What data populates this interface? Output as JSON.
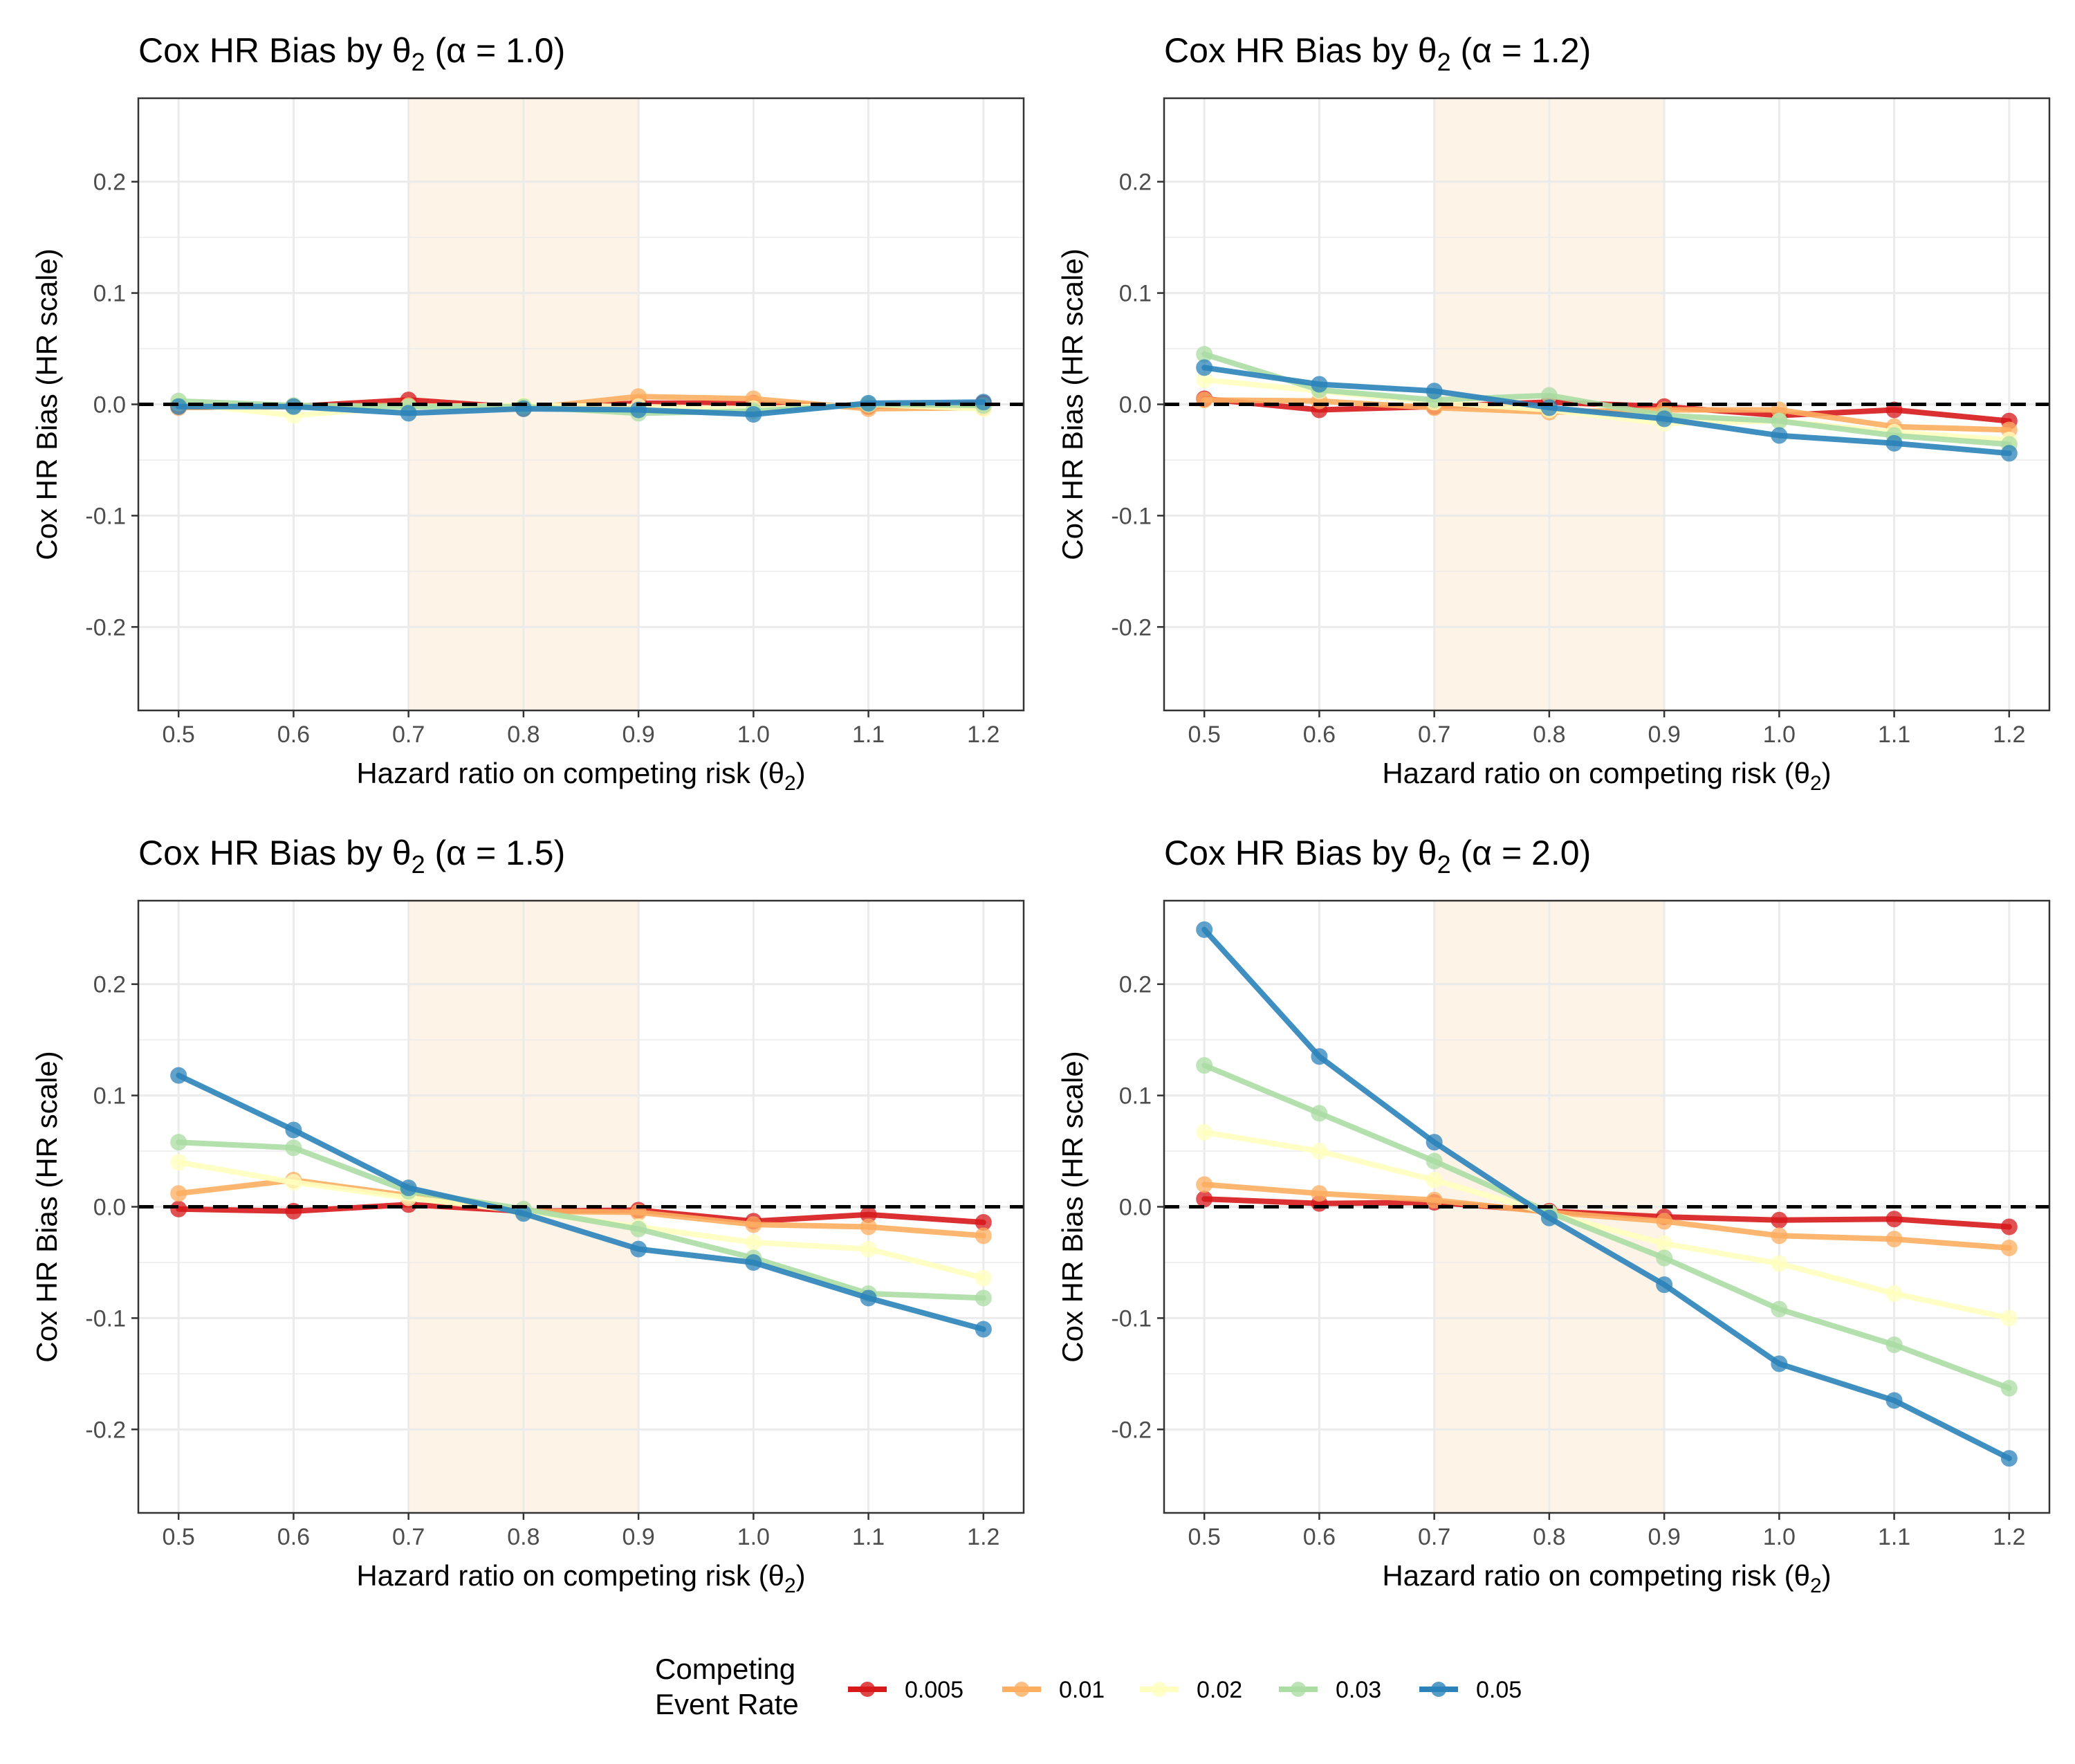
{
  "chart_data": [
    {
      "type": "line",
      "title_prefix": "Cox HR Bias by θ",
      "title_sub": "2",
      "title_suffix": " (α = 1.0)",
      "xlabel_prefix": "Hazard ratio on competing risk (θ",
      "xlabel_sub": "2",
      "xlabel_suffix": ")",
      "ylabel": "Cox HR Bias (HR scale)",
      "x": [
        0.5,
        0.6,
        0.7,
        0.8,
        0.9,
        1.0,
        1.1,
        1.2
      ],
      "xticks": [
        "0.5",
        "0.6",
        "0.7",
        "0.8",
        "0.9",
        "1.0",
        "1.1",
        "1.2"
      ],
      "yticks": [
        -0.2,
        -0.1,
        0.0,
        0.1,
        0.2
      ],
      "ytick_labels": [
        "-0.2",
        "-0.1",
        "0.0",
        "0.1",
        "0.2"
      ],
      "xlim": [
        0.465,
        1.235
      ],
      "ylim": [
        -0.275,
        0.275
      ],
      "shaded_band": [
        0.7,
        0.9
      ],
      "reference_line": 0,
      "series": [
        {
          "name": "0.005",
          "values": [
            -0.002,
            -0.002,
            0.004,
            -0.003,
            0.001,
            0.001,
            -0.002,
            0.001
          ]
        },
        {
          "name": "0.01",
          "values": [
            -0.003,
            -0.002,
            -0.001,
            -0.004,
            0.007,
            0.005,
            -0.004,
            -0.003
          ]
        },
        {
          "name": "0.02",
          "values": [
            0.001,
            -0.01,
            -0.002,
            -0.001,
            -0.002,
            -0.004,
            0.0,
            -0.004
          ]
        },
        {
          "name": "0.03",
          "values": [
            0.003,
            -0.001,
            -0.002,
            -0.002,
            -0.008,
            -0.006,
            0.0,
            -0.001
          ]
        },
        {
          "name": "0.05",
          "values": [
            -0.002,
            -0.002,
            -0.008,
            -0.004,
            -0.005,
            -0.009,
            0.001,
            0.002
          ]
        }
      ]
    },
    {
      "type": "line",
      "title_prefix": "Cox HR Bias by θ",
      "title_sub": "2",
      "title_suffix": " (α = 1.2)",
      "xlabel_prefix": "Hazard ratio on competing risk (θ",
      "xlabel_sub": "2",
      "xlabel_suffix": ")",
      "ylabel": "Cox HR Bias (HR scale)",
      "x": [
        0.5,
        0.6,
        0.7,
        0.8,
        0.9,
        1.0,
        1.1,
        1.2
      ],
      "xticks": [
        "0.5",
        "0.6",
        "0.7",
        "0.8",
        "0.9",
        "1.0",
        "1.1",
        "1.2"
      ],
      "yticks": [
        -0.2,
        -0.1,
        0.0,
        0.1,
        0.2
      ],
      "ytick_labels": [
        "-0.2",
        "-0.1",
        "0.0",
        "0.1",
        "0.2"
      ],
      "xlim": [
        0.465,
        1.235
      ],
      "ylim": [
        -0.275,
        0.275
      ],
      "shaded_band": [
        0.7,
        0.9
      ],
      "reference_line": 0,
      "series": [
        {
          "name": "0.005",
          "values": [
            0.005,
            -0.005,
            -0.002,
            0.002,
            -0.002,
            -0.01,
            -0.005,
            -0.015
          ]
        },
        {
          "name": "0.01",
          "values": [
            0.004,
            0.003,
            -0.003,
            -0.007,
            -0.005,
            -0.005,
            -0.02,
            -0.023
          ]
        },
        {
          "name": "0.02",
          "values": [
            0.022,
            0.012,
            0.002,
            -0.005,
            -0.017,
            -0.015,
            -0.025,
            -0.032
          ]
        },
        {
          "name": "0.03",
          "values": [
            0.045,
            0.013,
            0.004,
            0.008,
            -0.01,
            -0.015,
            -0.028,
            -0.036
          ]
        },
        {
          "name": "0.05",
          "values": [
            0.033,
            0.018,
            0.012,
            -0.003,
            -0.013,
            -0.028,
            -0.035,
            -0.044
          ]
        }
      ]
    },
    {
      "type": "line",
      "title_prefix": "Cox HR Bias by θ",
      "title_sub": "2",
      "title_suffix": " (α = 1.5)",
      "xlabel_prefix": "Hazard ratio on competing risk (θ",
      "xlabel_sub": "2",
      "xlabel_suffix": ")",
      "ylabel": "Cox HR Bias (HR scale)",
      "x": [
        0.5,
        0.6,
        0.7,
        0.8,
        0.9,
        1.0,
        1.1,
        1.2
      ],
      "xticks": [
        "0.5",
        "0.6",
        "0.7",
        "0.8",
        "0.9",
        "1.0",
        "1.1",
        "1.2"
      ],
      "yticks": [
        -0.2,
        -0.1,
        0.0,
        0.1,
        0.2
      ],
      "ytick_labels": [
        "-0.2",
        "-0.1",
        "0.0",
        "0.1",
        "0.2"
      ],
      "xlim": [
        0.465,
        1.235
      ],
      "ylim": [
        -0.275,
        0.275
      ],
      "shaded_band": [
        0.7,
        0.9
      ],
      "reference_line": 0,
      "series": [
        {
          "name": "0.005",
          "values": [
            -0.002,
            -0.004,
            0.002,
            -0.004,
            -0.003,
            -0.013,
            -0.007,
            -0.014
          ]
        },
        {
          "name": "0.01",
          "values": [
            0.012,
            0.024,
            0.01,
            -0.004,
            -0.005,
            -0.016,
            -0.018,
            -0.026
          ]
        },
        {
          "name": "0.02",
          "values": [
            0.04,
            0.022,
            0.008,
            -0.004,
            -0.018,
            -0.032,
            -0.038,
            -0.064
          ]
        },
        {
          "name": "0.03",
          "values": [
            0.058,
            0.053,
            0.014,
            -0.002,
            -0.02,
            -0.046,
            -0.078,
            -0.082
          ]
        },
        {
          "name": "0.05",
          "values": [
            0.118,
            0.069,
            0.017,
            -0.006,
            -0.038,
            -0.05,
            -0.082,
            -0.11
          ]
        }
      ]
    },
    {
      "type": "line",
      "title_prefix": "Cox HR Bias by θ",
      "title_sub": "2",
      "title_suffix": " (α = 2.0)",
      "xlabel_prefix": "Hazard ratio on competing risk (θ",
      "xlabel_sub": "2",
      "xlabel_suffix": ")",
      "ylabel": "Cox HR Bias (HR scale)",
      "x": [
        0.5,
        0.6,
        0.7,
        0.8,
        0.9,
        1.0,
        1.1,
        1.2
      ],
      "xticks": [
        "0.5",
        "0.6",
        "0.7",
        "0.8",
        "0.9",
        "1.0",
        "1.1",
        "1.2"
      ],
      "yticks": [
        -0.2,
        -0.1,
        0.0,
        0.1,
        0.2
      ],
      "ytick_labels": [
        "-0.2",
        "-0.1",
        "0.0",
        "0.1",
        "0.2"
      ],
      "xlim": [
        0.465,
        1.235
      ],
      "ylim": [
        -0.275,
        0.275
      ],
      "shaded_band": [
        0.7,
        0.9
      ],
      "reference_line": 0,
      "series": [
        {
          "name": "0.005",
          "values": [
            0.007,
            0.003,
            0.004,
            -0.004,
            -0.009,
            -0.012,
            -0.011,
            -0.018
          ]
        },
        {
          "name": "0.01",
          "values": [
            0.02,
            0.012,
            0.006,
            -0.005,
            -0.013,
            -0.026,
            -0.029,
            -0.037
          ]
        },
        {
          "name": "0.02",
          "values": [
            0.067,
            0.05,
            0.024,
            -0.006,
            -0.033,
            -0.051,
            -0.078,
            -0.1
          ]
        },
        {
          "name": "0.03",
          "values": [
            0.127,
            0.084,
            0.041,
            -0.005,
            -0.046,
            -0.092,
            -0.124,
            -0.163
          ]
        },
        {
          "name": "0.05",
          "values": [
            0.249,
            0.135,
            0.058,
            -0.01,
            -0.07,
            -0.141,
            -0.174,
            -0.226
          ]
        }
      ]
    }
  ],
  "legend": {
    "title_line1": "Competing",
    "title_line2": "Event Rate",
    "items": [
      {
        "label": "0.005",
        "color": "#d7191c"
      },
      {
        "label": "0.01",
        "color": "#fdae61"
      },
      {
        "label": "0.02",
        "color": "#ffffbf"
      },
      {
        "label": "0.03",
        "color": "#abdda4"
      },
      {
        "label": "0.05",
        "color": "#2b83ba"
      }
    ]
  },
  "colors": {
    "band": "#fdf3e7",
    "grid": "#ebebeb",
    "panel_border": "#333333",
    "reference": "#000000"
  }
}
